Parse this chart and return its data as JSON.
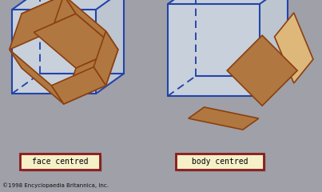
{
  "bg_color": "#a0a0a8",
  "fig_width": 4.03,
  "fig_height": 2.4,
  "dpi": 100,
  "label_bg": "#f5f0c8",
  "label_border": "#8b1a1a",
  "label1": "face centred",
  "label2": "body centred",
  "copyright": "©1998 Encyclopaedia Britannica, Inc.",
  "cube_solid": "#2244aa",
  "cube_dashed": "#2244aa",
  "cube_fill_top": "#c5cdd8",
  "cube_fill_right": "#bdc5d0",
  "cube_fill_front": "#c8d0db",
  "face_light": "#f5e8c8",
  "face_mid": "#ddb87a",
  "face_dark": "#b07840",
  "face_edge": "#8b4010",
  "shadow_color": "#909098",
  "lw_cube": 1.5,
  "lw_shape": 1.2
}
